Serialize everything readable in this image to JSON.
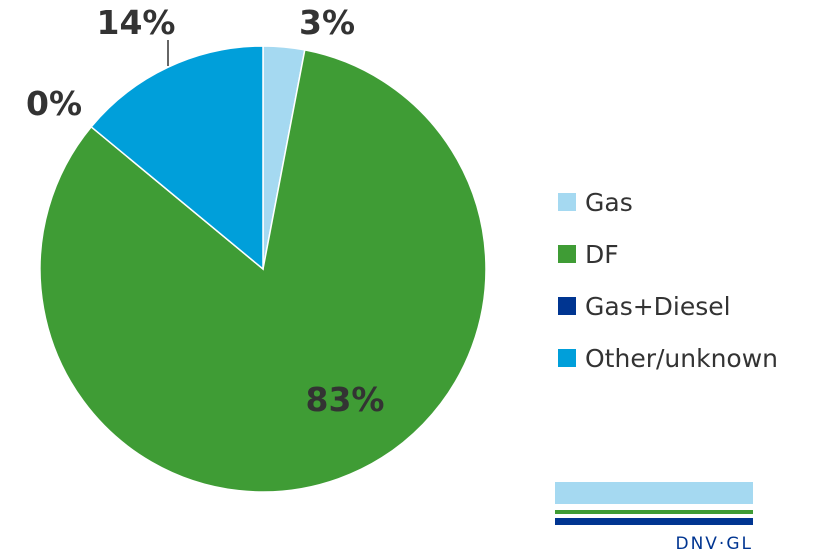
{
  "chart_data": {
    "type": "pie",
    "title": "",
    "slices": [
      {
        "label": "Gas",
        "value": 3,
        "value_label": "3%",
        "color": "#a5d9f1"
      },
      {
        "label": "DF",
        "value": 83,
        "value_label": "83%",
        "color": "#3f9c35"
      },
      {
        "label": "Gas+Diesel",
        "value": 0,
        "value_label": "0%",
        "color": "#003591"
      },
      {
        "label": "Other/unknown",
        "value": 14,
        "value_label": "14%",
        "color": "#009fda"
      }
    ],
    "legend_position": "right",
    "start_angle": "12 o'clock, clockwise"
  },
  "legend": {
    "items": [
      {
        "label": "Gas",
        "color": "#a5d9f1"
      },
      {
        "label": "DF",
        "color": "#3f9c35"
      },
      {
        "label": "Gas+Diesel",
        "color": "#003591"
      },
      {
        "label": "Other/unknown",
        "color": "#009fda"
      }
    ]
  },
  "logo": {
    "text": "DNV·GL"
  }
}
